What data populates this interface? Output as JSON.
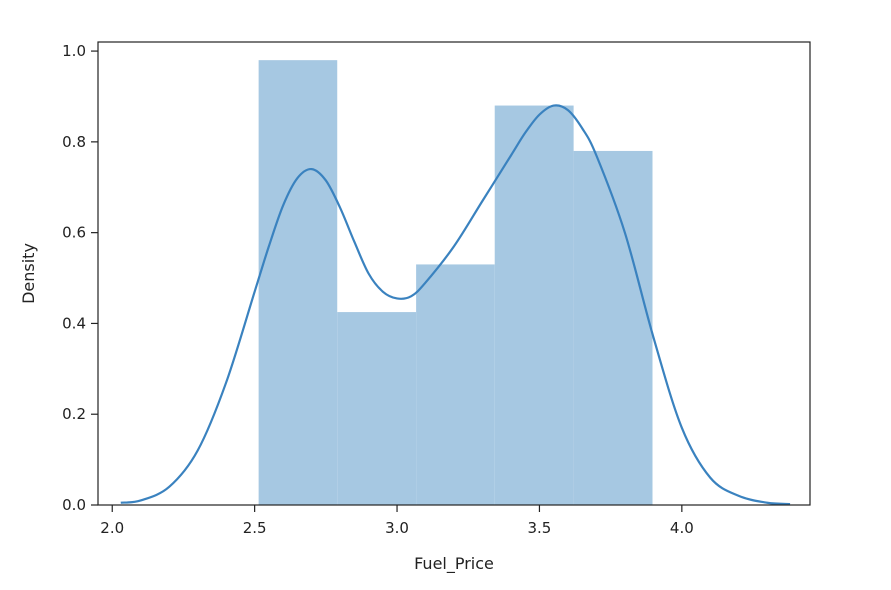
{
  "chart_data": {
    "type": "bar",
    "title": "",
    "xlabel": "Fuel_Price",
    "ylabel": "Density",
    "xlim": [
      1.95,
      4.45
    ],
    "ylim": [
      0,
      1.02
    ],
    "x_ticks": [
      2.0,
      2.5,
      3.0,
      3.5,
      4.0
    ],
    "x_tick_labels": [
      "2.0",
      "2.5",
      "3.0",
      "3.5",
      "4.0"
    ],
    "y_ticks": [
      0.0,
      0.2,
      0.4,
      0.6,
      0.8,
      1.0
    ],
    "y_tick_labels": [
      "0.0",
      "0.2",
      "0.4",
      "0.6",
      "0.8",
      "1.0"
    ],
    "grid": false,
    "histogram": {
      "bins": [
        {
          "x0": 2.514,
          "x1": 2.79,
          "density": 0.98
        },
        {
          "x0": 2.79,
          "x1": 3.067,
          "density": 0.425
        },
        {
          "x0": 3.067,
          "x1": 3.343,
          "density": 0.53
        },
        {
          "x0": 3.343,
          "x1": 3.62,
          "density": 0.88
        },
        {
          "x0": 3.62,
          "x1": 3.897,
          "density": 0.78
        }
      ],
      "color": "#a6c8e2"
    },
    "kde": {
      "color": "#3a82bf",
      "x": [
        2.03,
        2.1,
        2.2,
        2.3,
        2.4,
        2.5,
        2.55,
        2.6,
        2.65,
        2.7,
        2.75,
        2.8,
        2.85,
        2.9,
        2.95,
        3.0,
        3.05,
        3.1,
        3.2,
        3.3,
        3.4,
        3.45,
        3.5,
        3.55,
        3.6,
        3.65,
        3.7,
        3.8,
        3.9,
        4.0,
        4.1,
        4.2,
        4.3,
        4.38
      ],
      "y": [
        0.005,
        0.01,
        0.04,
        0.12,
        0.27,
        0.47,
        0.57,
        0.66,
        0.72,
        0.74,
        0.715,
        0.655,
        0.58,
        0.51,
        0.47,
        0.455,
        0.46,
        0.49,
        0.57,
        0.67,
        0.77,
        0.82,
        0.86,
        0.88,
        0.87,
        0.83,
        0.77,
        0.6,
        0.37,
        0.17,
        0.06,
        0.02,
        0.005,
        0.002
      ]
    }
  }
}
